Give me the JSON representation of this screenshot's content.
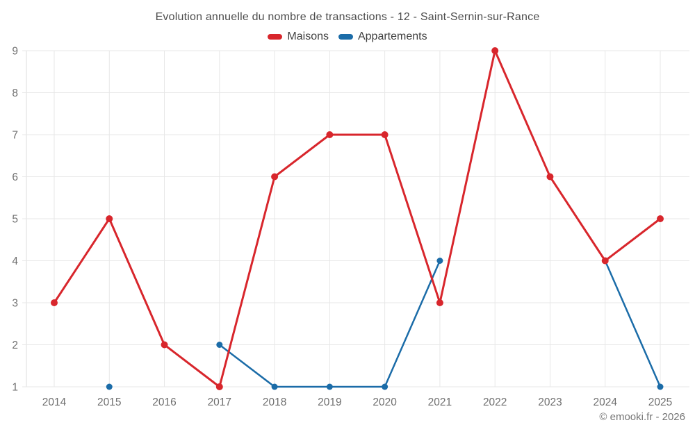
{
  "page": {
    "footer_credit": "© emooki.fr - 2026"
  },
  "chart_data": {
    "type": "line",
    "title": "Evolution annuelle du nombre de transactions - 12 - Saint-Sernin-sur-Rance",
    "categories": [
      "2014",
      "2015",
      "2016",
      "2017",
      "2018",
      "2019",
      "2020",
      "2021",
      "2022",
      "2023",
      "2024",
      "2025"
    ],
    "series": [
      {
        "name": "Maisons",
        "color": "#d8262c",
        "line_width": 3,
        "marker_radius": 5,
        "values": [
          3,
          5,
          2,
          1,
          6,
          7,
          7,
          3,
          9,
          6,
          4,
          5
        ]
      },
      {
        "name": "Appartements",
        "color": "#1b6ca8",
        "line_width": 2.5,
        "marker_radius": 4.5,
        "values": [
          null,
          1,
          null,
          2,
          1,
          1,
          1,
          4,
          null,
          null,
          4,
          1
        ]
      }
    ],
    "xlabel": "",
    "ylabel": "",
    "ylim": [
      1,
      9
    ],
    "yticks": [
      1,
      2,
      3,
      4,
      5,
      6,
      7,
      8,
      9
    ],
    "grid": true,
    "legend_position": "top",
    "colors": {
      "grid": "#e7e7e7",
      "axis_line": "#dedede",
      "tick_label": "#6f6f6f"
    }
  }
}
